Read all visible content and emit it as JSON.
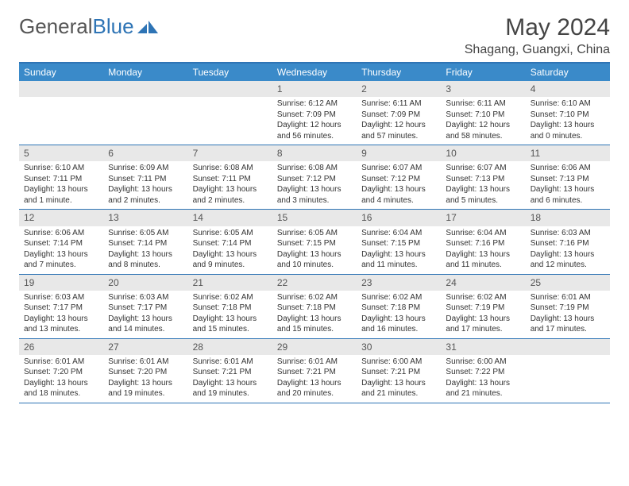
{
  "logo": {
    "text1": "General",
    "text2": "Blue"
  },
  "title": "May 2024",
  "location": "Shagang, Guangxi, China",
  "colors": {
    "header_bar": "#3a8ac9",
    "rule": "#2e74b5",
    "daynum_bg": "#e8e8e8",
    "text": "#333333"
  },
  "daysOfWeek": [
    "Sunday",
    "Monday",
    "Tuesday",
    "Wednesday",
    "Thursday",
    "Friday",
    "Saturday"
  ],
  "weeks": [
    [
      {
        "n": "",
        "lines": []
      },
      {
        "n": "",
        "lines": []
      },
      {
        "n": "",
        "lines": []
      },
      {
        "n": "1",
        "lines": [
          "Sunrise: 6:12 AM",
          "Sunset: 7:09 PM",
          "Daylight: 12 hours",
          "and 56 minutes."
        ]
      },
      {
        "n": "2",
        "lines": [
          "Sunrise: 6:11 AM",
          "Sunset: 7:09 PM",
          "Daylight: 12 hours",
          "and 57 minutes."
        ]
      },
      {
        "n": "3",
        "lines": [
          "Sunrise: 6:11 AM",
          "Sunset: 7:10 PM",
          "Daylight: 12 hours",
          "and 58 minutes."
        ]
      },
      {
        "n": "4",
        "lines": [
          "Sunrise: 6:10 AM",
          "Sunset: 7:10 PM",
          "Daylight: 13 hours",
          "and 0 minutes."
        ]
      }
    ],
    [
      {
        "n": "5",
        "lines": [
          "Sunrise: 6:10 AM",
          "Sunset: 7:11 PM",
          "Daylight: 13 hours",
          "and 1 minute."
        ]
      },
      {
        "n": "6",
        "lines": [
          "Sunrise: 6:09 AM",
          "Sunset: 7:11 PM",
          "Daylight: 13 hours",
          "and 2 minutes."
        ]
      },
      {
        "n": "7",
        "lines": [
          "Sunrise: 6:08 AM",
          "Sunset: 7:11 PM",
          "Daylight: 13 hours",
          "and 2 minutes."
        ]
      },
      {
        "n": "8",
        "lines": [
          "Sunrise: 6:08 AM",
          "Sunset: 7:12 PM",
          "Daylight: 13 hours",
          "and 3 minutes."
        ]
      },
      {
        "n": "9",
        "lines": [
          "Sunrise: 6:07 AM",
          "Sunset: 7:12 PM",
          "Daylight: 13 hours",
          "and 4 minutes."
        ]
      },
      {
        "n": "10",
        "lines": [
          "Sunrise: 6:07 AM",
          "Sunset: 7:13 PM",
          "Daylight: 13 hours",
          "and 5 minutes."
        ]
      },
      {
        "n": "11",
        "lines": [
          "Sunrise: 6:06 AM",
          "Sunset: 7:13 PM",
          "Daylight: 13 hours",
          "and 6 minutes."
        ]
      }
    ],
    [
      {
        "n": "12",
        "lines": [
          "Sunrise: 6:06 AM",
          "Sunset: 7:14 PM",
          "Daylight: 13 hours",
          "and 7 minutes."
        ]
      },
      {
        "n": "13",
        "lines": [
          "Sunrise: 6:05 AM",
          "Sunset: 7:14 PM",
          "Daylight: 13 hours",
          "and 8 minutes."
        ]
      },
      {
        "n": "14",
        "lines": [
          "Sunrise: 6:05 AM",
          "Sunset: 7:14 PM",
          "Daylight: 13 hours",
          "and 9 minutes."
        ]
      },
      {
        "n": "15",
        "lines": [
          "Sunrise: 6:05 AM",
          "Sunset: 7:15 PM",
          "Daylight: 13 hours",
          "and 10 minutes."
        ]
      },
      {
        "n": "16",
        "lines": [
          "Sunrise: 6:04 AM",
          "Sunset: 7:15 PM",
          "Daylight: 13 hours",
          "and 11 minutes."
        ]
      },
      {
        "n": "17",
        "lines": [
          "Sunrise: 6:04 AM",
          "Sunset: 7:16 PM",
          "Daylight: 13 hours",
          "and 11 minutes."
        ]
      },
      {
        "n": "18",
        "lines": [
          "Sunrise: 6:03 AM",
          "Sunset: 7:16 PM",
          "Daylight: 13 hours",
          "and 12 minutes."
        ]
      }
    ],
    [
      {
        "n": "19",
        "lines": [
          "Sunrise: 6:03 AM",
          "Sunset: 7:17 PM",
          "Daylight: 13 hours",
          "and 13 minutes."
        ]
      },
      {
        "n": "20",
        "lines": [
          "Sunrise: 6:03 AM",
          "Sunset: 7:17 PM",
          "Daylight: 13 hours",
          "and 14 minutes."
        ]
      },
      {
        "n": "21",
        "lines": [
          "Sunrise: 6:02 AM",
          "Sunset: 7:18 PM",
          "Daylight: 13 hours",
          "and 15 minutes."
        ]
      },
      {
        "n": "22",
        "lines": [
          "Sunrise: 6:02 AM",
          "Sunset: 7:18 PM",
          "Daylight: 13 hours",
          "and 15 minutes."
        ]
      },
      {
        "n": "23",
        "lines": [
          "Sunrise: 6:02 AM",
          "Sunset: 7:18 PM",
          "Daylight: 13 hours",
          "and 16 minutes."
        ]
      },
      {
        "n": "24",
        "lines": [
          "Sunrise: 6:02 AM",
          "Sunset: 7:19 PM",
          "Daylight: 13 hours",
          "and 17 minutes."
        ]
      },
      {
        "n": "25",
        "lines": [
          "Sunrise: 6:01 AM",
          "Sunset: 7:19 PM",
          "Daylight: 13 hours",
          "and 17 minutes."
        ]
      }
    ],
    [
      {
        "n": "26",
        "lines": [
          "Sunrise: 6:01 AM",
          "Sunset: 7:20 PM",
          "Daylight: 13 hours",
          "and 18 minutes."
        ]
      },
      {
        "n": "27",
        "lines": [
          "Sunrise: 6:01 AM",
          "Sunset: 7:20 PM",
          "Daylight: 13 hours",
          "and 19 minutes."
        ]
      },
      {
        "n": "28",
        "lines": [
          "Sunrise: 6:01 AM",
          "Sunset: 7:21 PM",
          "Daylight: 13 hours",
          "and 19 minutes."
        ]
      },
      {
        "n": "29",
        "lines": [
          "Sunrise: 6:01 AM",
          "Sunset: 7:21 PM",
          "Daylight: 13 hours",
          "and 20 minutes."
        ]
      },
      {
        "n": "30",
        "lines": [
          "Sunrise: 6:00 AM",
          "Sunset: 7:21 PM",
          "Daylight: 13 hours",
          "and 21 minutes."
        ]
      },
      {
        "n": "31",
        "lines": [
          "Sunrise: 6:00 AM",
          "Sunset: 7:22 PM",
          "Daylight: 13 hours",
          "and 21 minutes."
        ]
      },
      {
        "n": "",
        "lines": []
      }
    ]
  ]
}
